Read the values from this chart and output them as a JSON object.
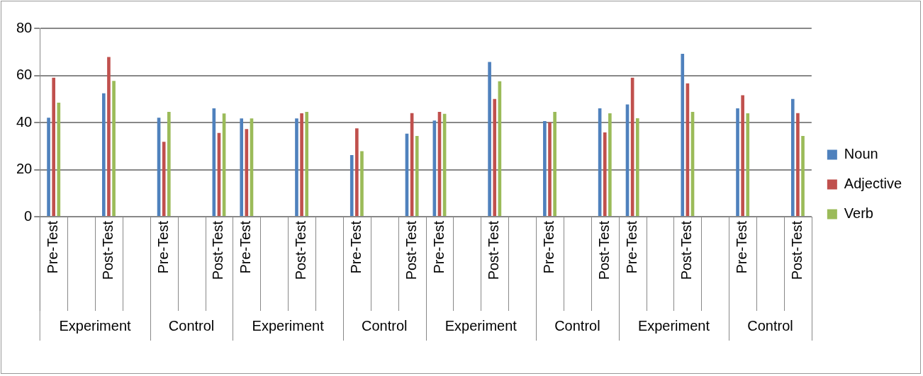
{
  "chart_data": {
    "type": "bar",
    "categories": [
      "Pre-Test",
      null,
      "Post-Test",
      null,
      "Pre-Test",
      null,
      "Post-Test",
      "Pre-Test",
      null,
      "Post-Test",
      null,
      "Pre-Test",
      null,
      "Post-Test",
      "Pre-Test",
      null,
      "Post-Test",
      null,
      "Pre-Test",
      null,
      "Post-Test",
      "Pre-Test",
      null,
      "Post-Test",
      null,
      "Pre-Test",
      null,
      "Post-Test"
    ],
    "annotations": [
      "Experiment",
      "Control",
      "Experiment",
      "Control",
      "Experiment",
      "Control",
      "Experiment",
      "Control"
    ],
    "series": [
      {
        "name": "Noun",
        "color": "#4f81bd",
        "values": [
          42,
          null,
          52.4,
          null,
          42,
          null,
          46,
          41.7,
          null,
          41.7,
          null,
          26.2,
          null,
          35.3,
          40.8,
          null,
          65.7,
          null,
          40.6,
          null,
          46,
          47.7,
          null,
          69.2,
          null,
          46,
          null,
          50
        ]
      },
      {
        "name": "Adjective",
        "color": "#c0504d",
        "values": [
          59,
          null,
          67.8,
          null,
          31.8,
          null,
          35.6,
          37.2,
          null,
          43.9,
          null,
          37.5,
          null,
          44,
          44.5,
          null,
          50,
          null,
          40.1,
          null,
          35.8,
          59,
          null,
          56.6,
          null,
          51.6,
          null,
          44
        ]
      },
      {
        "name": "Verb",
        "color": "#9bbb59",
        "values": [
          48.4,
          null,
          57.7,
          null,
          44.5,
          null,
          43.8,
          41.7,
          null,
          44.5,
          null,
          27.8,
          null,
          34.3,
          43.7,
          null,
          57.5,
          null,
          44.5,
          null,
          43.9,
          41.8,
          null,
          44.5,
          null,
          43.9,
          null,
          34.3
        ]
      }
    ],
    "ylim": [
      0,
      80
    ],
    "yticks": [
      0,
      20,
      40,
      60,
      80
    ],
    "grid": "y",
    "legend": "right"
  }
}
